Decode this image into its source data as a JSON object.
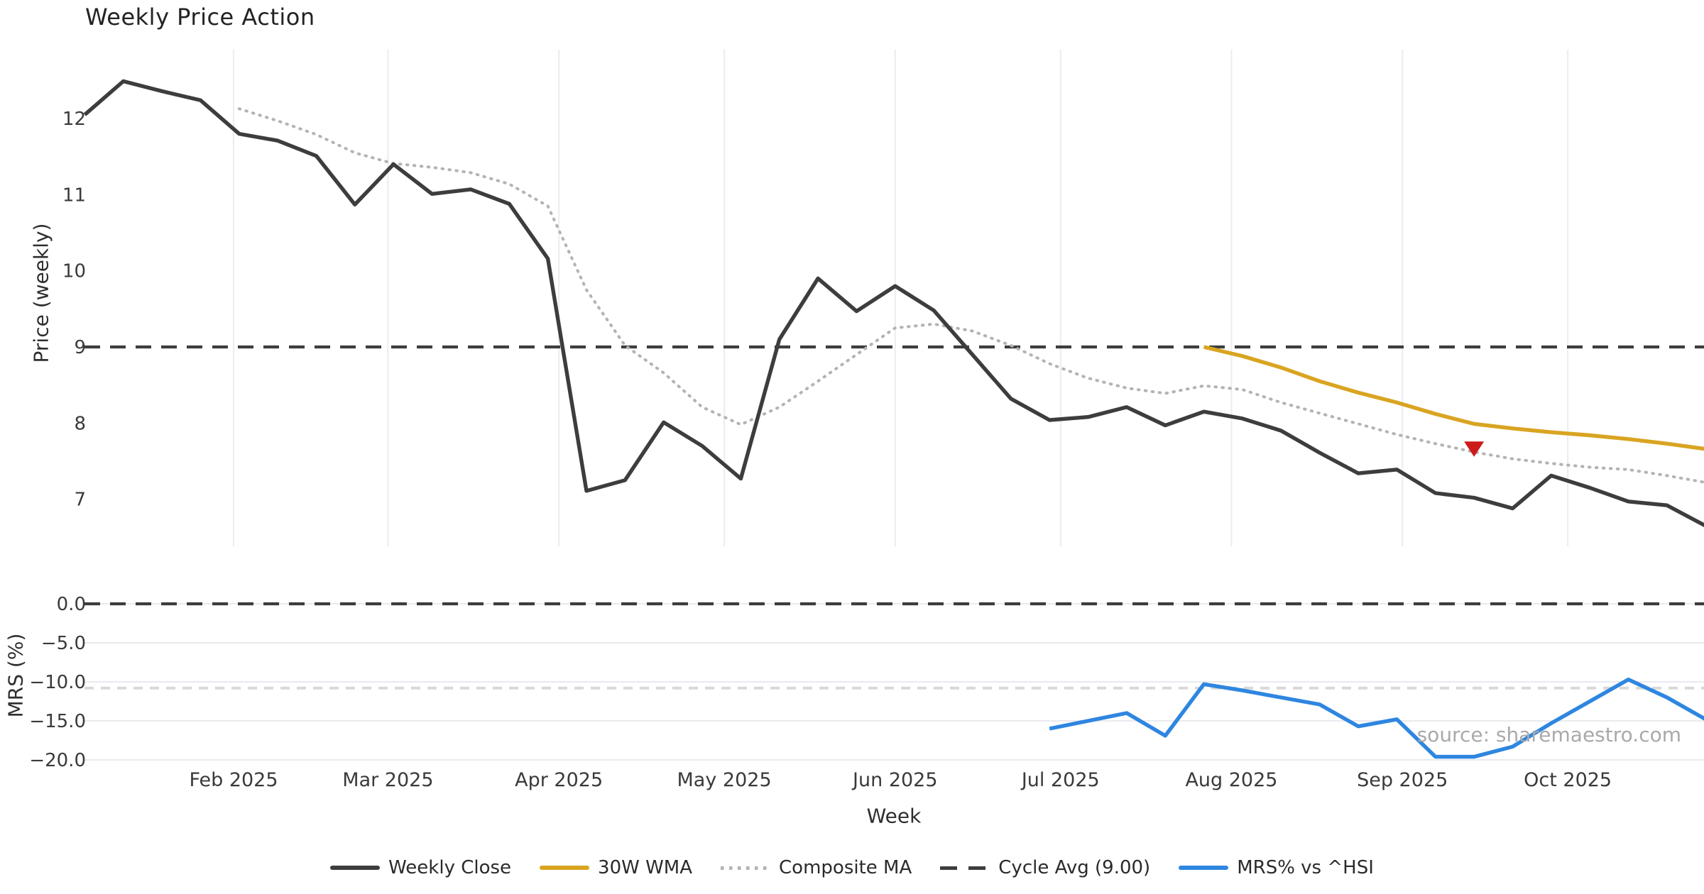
{
  "title": "Weekly Price Action",
  "source_note": "source: sharemaestro.com",
  "axes": {
    "price": {
      "label": "Price (weekly)",
      "ticks": [
        12,
        11,
        10,
        9,
        8,
        7
      ],
      "range": [
        6.4,
        12.8
      ]
    },
    "mrs": {
      "label": "MRS (%)",
      "ticks": [
        0.0,
        -5.0,
        -10.0,
        -15.0,
        -20.0
      ],
      "range": [
        -21.0,
        1.5
      ]
    },
    "x": {
      "label": "Week",
      "months": [
        {
          "label": "Feb 2025",
          "date": "2025-02-01"
        },
        {
          "label": "Mar 2025",
          "date": "2025-03-01"
        },
        {
          "label": "Apr 2025",
          "date": "2025-04-01"
        },
        {
          "label": "May 2025",
          "date": "2025-05-01"
        },
        {
          "label": "Jun 2025",
          "date": "2025-06-01"
        },
        {
          "label": "Jul 2025",
          "date": "2025-07-01"
        },
        {
          "label": "Aug 2025",
          "date": "2025-08-01"
        },
        {
          "label": "Sep 2025",
          "date": "2025-09-01"
        },
        {
          "label": "Oct 2025",
          "date": "2025-10-01"
        }
      ]
    }
  },
  "chart_data": [
    {
      "name": "Cycle Avg (9.00)",
      "type": "hline",
      "panel": "price",
      "value": 9.0,
      "color": "#3d3d3d",
      "style": "dashed"
    },
    {
      "name": "MRS zero line",
      "type": "hline",
      "panel": "mrs",
      "value": 0.0,
      "color": "#3d3d3d",
      "style": "dashed"
    },
    {
      "name": "MRS threshold",
      "type": "hline",
      "panel": "mrs",
      "value": -10.8,
      "color": "#d9d9d9",
      "style": "dashed"
    },
    {
      "name": "Composite MA",
      "type": "line",
      "panel": "price",
      "color": "#b3b3b3",
      "style": "dotted",
      "x": [
        "2025-02-02",
        "2025-02-09",
        "2025-02-16",
        "2025-02-23",
        "2025-03-02",
        "2025-03-09",
        "2025-03-16",
        "2025-03-23",
        "2025-03-30",
        "2025-04-06",
        "2025-04-13",
        "2025-04-20",
        "2025-04-27",
        "2025-05-04",
        "2025-05-11",
        "2025-05-18",
        "2025-05-25",
        "2025-06-01",
        "2025-06-08",
        "2025-06-15",
        "2025-06-22",
        "2025-06-29",
        "2025-07-06",
        "2025-07-13",
        "2025-07-20",
        "2025-07-27",
        "2025-08-03",
        "2025-08-10",
        "2025-08-17",
        "2025-08-24",
        "2025-08-31",
        "2025-09-07",
        "2025-09-14",
        "2025-09-21",
        "2025-09-28",
        "2025-10-05",
        "2025-10-12",
        "2025-10-19",
        "2025-10-26"
      ],
      "values": [
        12.13,
        11.97,
        11.79,
        11.55,
        11.41,
        11.36,
        11.29,
        11.14,
        10.85,
        9.75,
        9.02,
        8.66,
        8.21,
        7.98,
        8.21,
        8.55,
        8.9,
        9.25,
        9.3,
        9.21,
        9.02,
        8.78,
        8.59,
        8.46,
        8.39,
        8.49,
        8.44,
        8.27,
        8.13,
        7.99,
        7.85,
        7.73,
        7.62,
        7.53,
        7.47,
        7.42,
        7.39,
        7.31,
        7.22
      ]
    },
    {
      "name": "30W WMA",
      "type": "line",
      "panel": "price",
      "color": "#d9a421",
      "style": "solid",
      "x": [
        "2025-07-27",
        "2025-08-03",
        "2025-08-10",
        "2025-08-17",
        "2025-08-24",
        "2025-08-31",
        "2025-09-07",
        "2025-09-14",
        "2025-09-21",
        "2025-09-28",
        "2025-10-05",
        "2025-10-12",
        "2025-10-19",
        "2025-10-26"
      ],
      "values": [
        9.0,
        8.88,
        8.73,
        8.55,
        8.4,
        8.27,
        8.12,
        7.99,
        7.93,
        7.88,
        7.84,
        7.79,
        7.73,
        7.66
      ]
    },
    {
      "name": "MRS% vs ^HSI",
      "type": "line",
      "panel": "mrs",
      "color": "#2e86e0",
      "style": "solid",
      "x": [
        "2025-06-29",
        "2025-07-06",
        "2025-07-13",
        "2025-07-20",
        "2025-07-27",
        "2025-08-03",
        "2025-08-10",
        "2025-08-17",
        "2025-08-24",
        "2025-08-31",
        "2025-09-07",
        "2025-09-14",
        "2025-09-21",
        "2025-09-28",
        "2025-10-05",
        "2025-10-12",
        "2025-10-19",
        "2025-10-26"
      ],
      "values": [
        -16.0,
        -15.0,
        -14.0,
        -16.9,
        -10.3,
        -11.1,
        -12.0,
        -12.9,
        -15.7,
        -14.8,
        -19.6,
        -19.6,
        -18.3,
        -15.3,
        -12.5,
        -9.7,
        -12.0,
        -14.8
      ]
    },
    {
      "name": "Weekly Close",
      "type": "line",
      "panel": "price",
      "color": "#3d3d3d",
      "style": "solid",
      "x": [
        "2025-01-05",
        "2025-01-12",
        "2025-01-19",
        "2025-01-26",
        "2025-02-02",
        "2025-02-09",
        "2025-02-16",
        "2025-02-23",
        "2025-03-02",
        "2025-03-09",
        "2025-03-16",
        "2025-03-23",
        "2025-03-30",
        "2025-04-06",
        "2025-04-13",
        "2025-04-20",
        "2025-04-27",
        "2025-05-04",
        "2025-05-11",
        "2025-05-18",
        "2025-05-25",
        "2025-06-01",
        "2025-06-08",
        "2025-06-15",
        "2025-06-22",
        "2025-06-29",
        "2025-07-06",
        "2025-07-13",
        "2025-07-20",
        "2025-07-27",
        "2025-08-03",
        "2025-08-10",
        "2025-08-17",
        "2025-08-24",
        "2025-08-31",
        "2025-09-07",
        "2025-09-14",
        "2025-09-21",
        "2025-09-28",
        "2025-10-05",
        "2025-10-12",
        "2025-10-19",
        "2025-10-26"
      ],
      "values": [
        12.05,
        12.49,
        12.36,
        12.24,
        11.8,
        11.71,
        11.51,
        10.87,
        11.4,
        11.01,
        11.07,
        10.88,
        10.16,
        7.11,
        7.25,
        8.01,
        7.7,
        7.27,
        9.1,
        9.9,
        9.47,
        9.8,
        9.48,
        8.9,
        8.32,
        8.04,
        8.08,
        8.21,
        7.97,
        8.15,
        8.06,
        7.9,
        7.61,
        7.34,
        7.39,
        7.08,
        7.02,
        6.88,
        7.31,
        7.15,
        6.97,
        6.92,
        6.65
      ]
    },
    {
      "name": "Sell signal marker",
      "type": "marker",
      "panel": "price",
      "marker": "triangle-down",
      "x": "2025-09-14",
      "value": 7.66,
      "color": "#cd1b1b"
    }
  ],
  "legend": [
    {
      "label": "Weekly Close",
      "color": "#3d3d3d",
      "style": "solid"
    },
    {
      "label": "30W WMA",
      "color": "#d9a421",
      "style": "solid"
    },
    {
      "label": "Composite MA",
      "color": "#b3b3b3",
      "style": "dotted"
    },
    {
      "label": "Cycle Avg (9.00)",
      "color": "#3d3d3d",
      "style": "dashed"
    },
    {
      "label": "MRS% vs ^HSI",
      "color": "#2e86e0",
      "style": "solid"
    }
  ]
}
